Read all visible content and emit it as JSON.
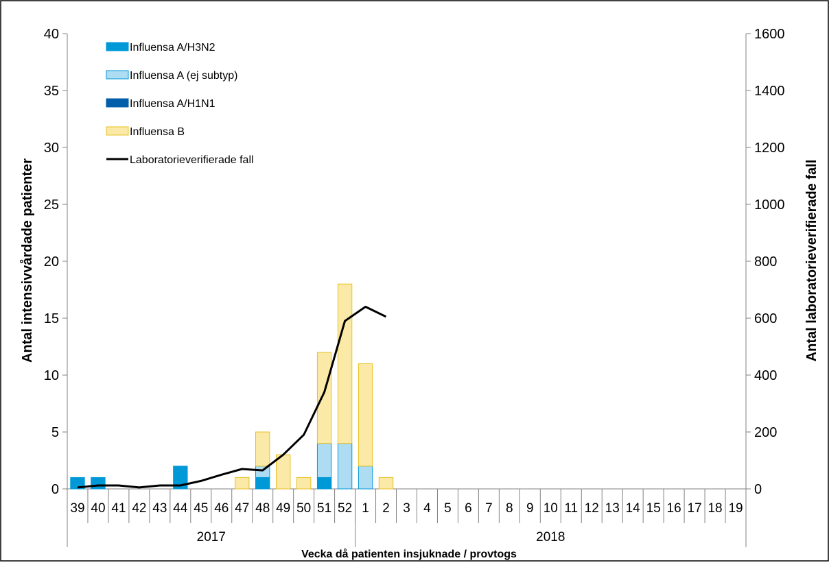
{
  "chart_data": {
    "type": "bar",
    "title": "",
    "xlabel": "Vecka då patienten insjuknade / provtogs",
    "ylabel_left": "Antal intensivvårdade patienter",
    "ylabel_right": "Antal laboratorieverifierade fall",
    "ylim_left": [
      0,
      40
    ],
    "ylim_right": [
      0,
      1600
    ],
    "left_ticks": [
      "0",
      "5",
      "10",
      "15",
      "20",
      "25",
      "30",
      "35",
      "40"
    ],
    "right_ticks": [
      "0",
      "200",
      "400",
      "600",
      "800",
      "1000",
      "1200",
      "1400",
      "1600"
    ],
    "categories": [
      "39",
      "40",
      "41",
      "42",
      "43",
      "44",
      "45",
      "46",
      "47",
      "48",
      "49",
      "50",
      "51",
      "52",
      "1",
      "2",
      "3",
      "4",
      "5",
      "6",
      "7",
      "8",
      "9",
      "10",
      "11",
      "12",
      "13",
      "14",
      "15",
      "16",
      "17",
      "18",
      "19"
    ],
    "year_groups": [
      {
        "label": "2017",
        "count": 14
      },
      {
        "label": "2018",
        "count": 19
      }
    ],
    "grid": false,
    "legend_placement": "top-left",
    "series": [
      {
        "name": "Influensa A/H3N2",
        "kind": "bar",
        "axis": "left",
        "color": "#0099d8",
        "stroke": "#0099d8",
        "values": [
          1,
          1,
          0,
          0,
          0,
          2,
          0,
          0,
          0,
          1,
          0,
          0,
          1,
          0,
          0,
          0,
          0,
          0,
          0,
          0,
          0,
          0,
          0,
          0,
          0,
          0,
          0,
          0,
          0,
          0,
          0,
          0,
          0
        ]
      },
      {
        "name": "Influensa A (ej subtyp)",
        "kind": "bar",
        "axis": "left",
        "color": "#aedcf3",
        "stroke": "#0099d8",
        "values": [
          0,
          0,
          0,
          0,
          0,
          0,
          0,
          0,
          0,
          1,
          0,
          0,
          3,
          4,
          2,
          0,
          0,
          0,
          0,
          0,
          0,
          0,
          0,
          0,
          0,
          0,
          0,
          0,
          0,
          0,
          0,
          0,
          0
        ]
      },
      {
        "name": "Influensa A/H1N1",
        "kind": "bar",
        "axis": "left",
        "color": "#005da9",
        "stroke": "#005da9",
        "values": [
          0,
          0,
          0,
          0,
          0,
          0,
          0,
          0,
          0,
          0,
          0,
          0,
          0,
          0,
          0,
          0,
          0,
          0,
          0,
          0,
          0,
          0,
          0,
          0,
          0,
          0,
          0,
          0,
          0,
          0,
          0,
          0,
          0
        ]
      },
      {
        "name": "Influensa B",
        "kind": "bar",
        "axis": "left",
        "color": "#fbe9a8",
        "stroke": "#e8c020",
        "values": [
          0,
          0,
          0,
          0,
          0,
          0,
          0,
          0,
          1,
          3,
          3,
          1,
          8,
          14,
          9,
          1,
          0,
          0,
          0,
          0,
          0,
          0,
          0,
          0,
          0,
          0,
          0,
          0,
          0,
          0,
          0,
          0,
          0
        ]
      },
      {
        "name": "Laboratorieverifierade fall",
        "kind": "line",
        "axis": "right",
        "color": "#000000",
        "values": [
          5,
          12,
          12,
          5,
          12,
          12,
          28,
          50,
          70,
          65,
          120,
          190,
          340,
          590,
          640,
          605,
          null,
          null,
          null,
          null,
          null,
          null,
          null,
          null,
          null,
          null,
          null,
          null,
          null,
          null,
          null,
          null,
          null
        ]
      }
    ]
  }
}
